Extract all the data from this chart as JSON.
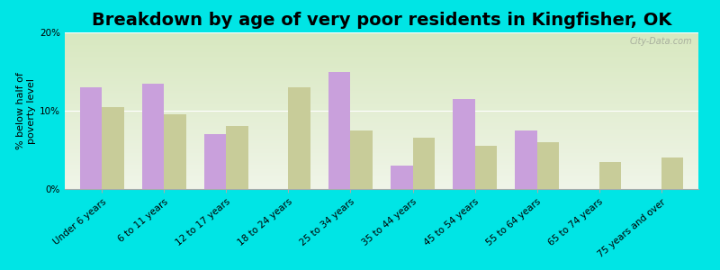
{
  "title": "Breakdown by age of very poor residents in Kingfisher, OK",
  "ylabel": "% below half of\npoverty level",
  "categories": [
    "Under 6 years",
    "6 to 11 years",
    "12 to 17 years",
    "18 to 24 years",
    "25 to 34 years",
    "35 to 44 years",
    "45 to 54 years",
    "55 to 64 years",
    "65 to 74 years",
    "75 years and over"
  ],
  "kingfisher": [
    13.0,
    13.5,
    7.0,
    0.0,
    15.0,
    3.0,
    11.5,
    7.5,
    0.0,
    0.0
  ],
  "oklahoma": [
    10.5,
    9.5,
    8.0,
    13.0,
    7.5,
    6.5,
    5.5,
    6.0,
    3.5,
    4.0
  ],
  "kingfisher_color": "#c9a0dc",
  "oklahoma_color": "#c8cc99",
  "background_color": "#00e5e5",
  "plot_bg_top": "#d8e8c0",
  "plot_bg_bottom": "#f0f5e8",
  "ylim": [
    0,
    20
  ],
  "yticks": [
    0,
    10,
    20
  ],
  "ytick_labels": [
    "0%",
    "10%",
    "20%"
  ],
  "bar_width": 0.35,
  "title_fontsize": 14,
  "axis_label_fontsize": 8,
  "tick_fontsize": 7.5,
  "legend_fontsize": 9,
  "watermark": "City-Data.com"
}
